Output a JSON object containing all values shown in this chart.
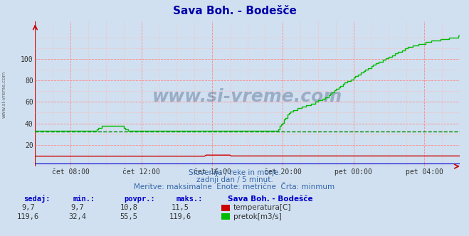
{
  "title": "Sava Boh. - Bodešče",
  "bg_color": "#d0e0f0",
  "plot_bg_color": "#d0e0f0",
  "grid_color_major": "#ff8888",
  "grid_color_minor": "#ffbbbb",
  "x_labels": [
    "čet 08:00",
    "čet 12:00",
    "čet 16:00",
    "čet 20:00",
    "pet 00:00",
    "pet 04:00"
  ],
  "x_ticks_norm": [
    0.0833,
    0.25,
    0.4167,
    0.5833,
    0.75,
    0.9167
  ],
  "y_min": 0,
  "y_max": 120,
  "y_ticks": [
    20,
    40,
    60,
    80,
    100
  ],
  "subtitle1": "Slovenija / reke in morje.",
  "subtitle2": "zadnji dan / 5 minut.",
  "subtitle3": "Meritve: maksimalne  Enote: metrične  Črta: minmum",
  "temp_color": "#cc0000",
  "flow_color": "#00bb00",
  "min_line_color": "#008800",
  "min_line_value": 32.4,
  "watermark": "www.si-vreme.com",
  "legend_station": "Sava Boh. - Bodešče",
  "legend_temp_label": "temperatura[C]",
  "legend_flow_label": "pretok[m3/s]",
  "table_headers": [
    "sedaj:",
    "min.:",
    "povpr.:",
    "maks.:"
  ],
  "table_temp": [
    "9,7",
    "9,7",
    "10,8",
    "11,5"
  ],
  "table_flow": [
    "119,6",
    "32,4",
    "55,5",
    "119,6"
  ],
  "sidebar_text": "www.si-vreme.com",
  "blue_line_color": "#0000cc",
  "arrow_color": "#cc0000",
  "title_color": "#0000aa",
  "subtitle_color": "#3366aa",
  "tick_color": "#333333",
  "table_header_color": "#0000cc",
  "table_val_color": "#333333"
}
